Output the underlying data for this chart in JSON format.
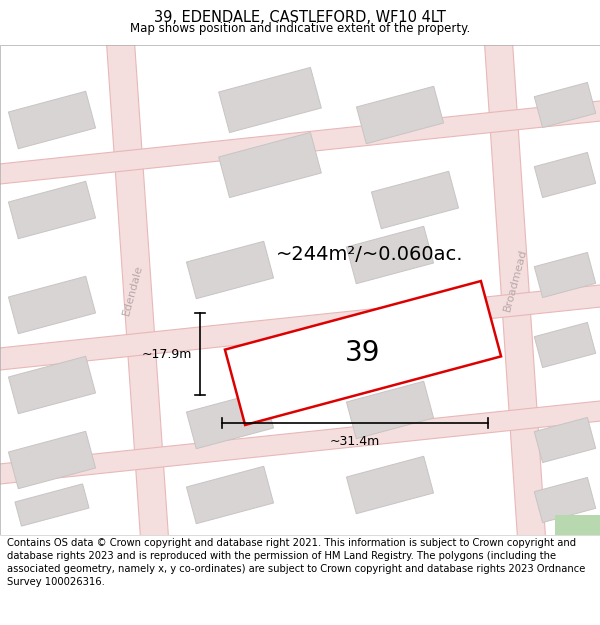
{
  "title": "39, EDENDALE, CASTLEFORD, WF10 4LT",
  "subtitle": "Map shows position and indicative extent of the property.",
  "footer": "Contains OS data © Crown copyright and database right 2021. This information is subject to Crown copyright and database rights 2023 and is reproduced with the permission of HM Land Registry. The polygons (including the associated geometry, namely x, y co-ordinates) are subject to Crown copyright and database rights 2023 Ordnance Survey 100026316.",
  "area_label": "~244m²/~0.060ac.",
  "width_label": "~31.4m",
  "height_label": "~17.9m",
  "number_label": "39",
  "map_bg": "#f0eeee",
  "building_face": "#d8d4d4",
  "building_edge": "#c8c4c4",
  "highlight_color": "#dd0000",
  "road_fill": "#f5dede",
  "road_edge": "#e8b8b8",
  "street_label_color": "#b8a8a8",
  "green_patch": "#b8d8b0",
  "title_fontsize": 10.5,
  "subtitle_fontsize": 8.5,
  "footer_fontsize": 7.2,
  "area_fontsize": 14,
  "num_fontsize": 20,
  "dim_fontsize": 9,
  "street_fontsize": 8
}
